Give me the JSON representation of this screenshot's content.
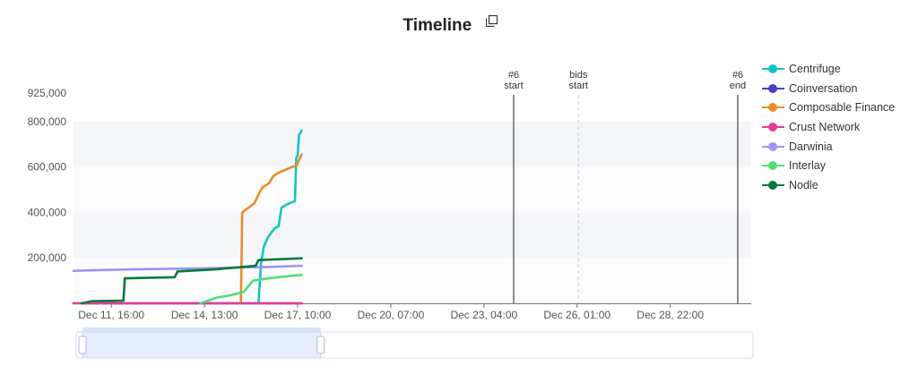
{
  "title": "Timeline",
  "copy_icon": "copy-icon",
  "chart_data": {
    "type": "line",
    "title": "Timeline",
    "x_ticks": [
      "Dec 11, 16:00",
      "Dec 14, 13:00",
      "Dec 17, 10:00",
      "Dec 20, 07:00",
      "Dec 23, 04:00",
      "Dec 26, 01:00",
      "Dec 28, 22:00"
    ],
    "x_range": [
      "Dec 10, 12:00",
      "Dec 31, 10:00"
    ],
    "y_ticks": [
      "200,000",
      "400,000",
      "600,000",
      "800,000",
      "925,000"
    ],
    "ylim": [
      0,
      925000
    ],
    "legend_position": "right",
    "markers": [
      {
        "label_top": "#6",
        "label_bottom": "start",
        "x": "Dec 24, 02:00",
        "style": "solid"
      },
      {
        "label_top": "bids",
        "label_bottom": "start",
        "x": "Dec 26, 02:00",
        "style": "dashed"
      },
      {
        "label_top": "#6",
        "label_bottom": "end",
        "x": "Dec 31, 00:00",
        "style": "solid"
      }
    ],
    "series": [
      {
        "name": "Centrifuge",
        "color": "#15c3c6",
        "points": [
          [
            "Dec 16, 05:00",
            0
          ],
          [
            "Dec 16, 07:00",
            180000
          ],
          [
            "Dec 16, 09:00",
            250000
          ],
          [
            "Dec 16, 12:00",
            290000
          ],
          [
            "Dec 16, 15:00",
            315000
          ],
          [
            "Dec 16, 17:00",
            330000
          ],
          [
            "Dec 16, 20:00",
            340000
          ],
          [
            "Dec 16, 22:00",
            420000
          ],
          [
            "Dec 17, 02:00",
            435000
          ],
          [
            "Dec 17, 06:00",
            445000
          ],
          [
            "Dec 17, 08:00",
            450000
          ],
          [
            "Dec 17, 09:00",
            640000
          ],
          [
            "Dec 17, 10:00",
            650000
          ],
          [
            "Dec 17, 11:00",
            740000
          ],
          [
            "Dec 17, 13:00",
            760000
          ]
        ]
      },
      {
        "name": "Coinversation",
        "color": "#4a3fc8",
        "points": [
          [
            "Dec 10, 18:00",
            0
          ],
          [
            "Dec 17, 13:00",
            0
          ]
        ]
      },
      {
        "name": "Composable Finance",
        "color": "#ee8b25",
        "points": [
          [
            "Dec 15, 16:00",
            0
          ],
          [
            "Dec 15, 17:00",
            400000
          ],
          [
            "Dec 16, 02:00",
            440000
          ],
          [
            "Dec 16, 06:00",
            490000
          ],
          [
            "Dec 16, 08:00",
            510000
          ],
          [
            "Dec 16, 13:00",
            530000
          ],
          [
            "Dec 16, 16:00",
            560000
          ],
          [
            "Dec 16, 20:00",
            575000
          ],
          [
            "Dec 17, 02:00",
            590000
          ],
          [
            "Dec 17, 06:00",
            600000
          ],
          [
            "Dec 17, 09:00",
            605000
          ],
          [
            "Dec 17, 11:00",
            630000
          ],
          [
            "Dec 17, 13:00",
            655000
          ]
        ]
      },
      {
        "name": "Crust Network",
        "color": "#e23d95",
        "points": [
          [
            "Dec 10, 12:00",
            0
          ],
          [
            "Dec 17, 13:00",
            0
          ]
        ]
      },
      {
        "name": "Darwinia",
        "color": "#9f93f5",
        "points": [
          [
            "Dec 10, 12:00",
            143000
          ],
          [
            "Dec 11, 12:00",
            147000
          ],
          [
            "Dec 12, 12:00",
            150000
          ],
          [
            "Dec 13, 12:00",
            152000
          ],
          [
            "Dec 14, 12:00",
            154000
          ],
          [
            "Dec 15, 12:00",
            157000
          ],
          [
            "Dec 16, 12:00",
            160000
          ],
          [
            "Dec 17, 13:00",
            165000
          ]
        ]
      },
      {
        "name": "Interlay",
        "color": "#4ddf79",
        "points": [
          [
            "Dec 14, 10:00",
            0
          ],
          [
            "Dec 14, 22:00",
            25000
          ],
          [
            "Dec 15, 08:00",
            35000
          ],
          [
            "Dec 15, 18:00",
            50000
          ],
          [
            "Dec 16, 01:00",
            100000
          ],
          [
            "Dec 16, 13:00",
            110000
          ],
          [
            "Dec 17, 01:00",
            118000
          ],
          [
            "Dec 17, 13:00",
            125000
          ]
        ]
      },
      {
        "name": "Nodle",
        "color": "#067a3c",
        "points": [
          [
            "Dec 10, 18:00",
            0
          ],
          [
            "Dec 11, 02:00",
            10000
          ],
          [
            "Dec 12, 01:00",
            12000
          ],
          [
            "Dec 12, 02:00",
            110000
          ],
          [
            "Dec 13, 15:00",
            115000
          ],
          [
            "Dec 13, 17:00",
            140000
          ],
          [
            "Dec 14, 22:00",
            150000
          ],
          [
            "Dec 16, 03:00",
            165000
          ],
          [
            "Dec 16, 05:00",
            190000
          ],
          [
            "Dec 17, 13:00",
            198000
          ]
        ]
      }
    ]
  },
  "data_zoom": {
    "range_start_percent": 0,
    "range_end_percent": 25
  }
}
